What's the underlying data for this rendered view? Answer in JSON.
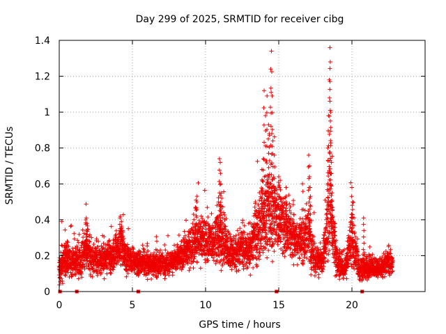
{
  "chart_data": {
    "type": "scatter",
    "title": "Day 299 of 2025, SRMTID for receiver cibg",
    "xlabel": "GPS time / hours",
    "ylabel": "SRMTID / TECUs",
    "xlim": [
      0,
      25
    ],
    "ylim": [
      0,
      1.4
    ],
    "x_ticks": [
      0,
      5,
      10,
      15,
      20
    ],
    "y_ticks": [
      0,
      0.2,
      0.4,
      0.6,
      0.8,
      1,
      1.2,
      1.4
    ],
    "x_tick_labels": [
      "0",
      "5",
      "10",
      "15",
      "20"
    ],
    "y_tick_labels": [
      "0",
      "0.2",
      "0.4",
      "0.6",
      "0.8",
      "1",
      "1.2",
      "1.4"
    ],
    "grid": true,
    "marker": "+",
    "color": "#ee0000",
    "series_description": "Dense 30-second SRMTID samples between 0 and 23 hours, mostly 0.05-0.3 TECU with enhancements near 4.2h, 9.5-11.5h and 13-19h",
    "series_envelope": [
      [
        0.0,
        0.13,
        0.06
      ],
      [
        0.3,
        0.16,
        0.07
      ],
      [
        0.6,
        0.18,
        0.08
      ],
      [
        1.0,
        0.17,
        0.06
      ],
      [
        1.5,
        0.18,
        0.07
      ],
      [
        1.9,
        0.26,
        0.1
      ],
      [
        2.3,
        0.17,
        0.06
      ],
      [
        3.0,
        0.18,
        0.06
      ],
      [
        3.6,
        0.19,
        0.06
      ],
      [
        4.2,
        0.28,
        0.09
      ],
      [
        4.6,
        0.18,
        0.06
      ],
      [
        5.5,
        0.16,
        0.05
      ],
      [
        6.5,
        0.15,
        0.05
      ],
      [
        7.5,
        0.16,
        0.05
      ],
      [
        8.5,
        0.2,
        0.06
      ],
      [
        9.0,
        0.26,
        0.09
      ],
      [
        9.5,
        0.3,
        0.11
      ],
      [
        10.0,
        0.28,
        0.09
      ],
      [
        10.5,
        0.27,
        0.08
      ],
      [
        11.0,
        0.33,
        0.14
      ],
      [
        11.5,
        0.23,
        0.08
      ],
      [
        12.0,
        0.22,
        0.07
      ],
      [
        12.5,
        0.24,
        0.08
      ],
      [
        13.0,
        0.22,
        0.07
      ],
      [
        13.6,
        0.35,
        0.14
      ],
      [
        14.2,
        0.45,
        0.18
      ],
      [
        14.7,
        0.42,
        0.15
      ],
      [
        15.2,
        0.4,
        0.14
      ],
      [
        15.7,
        0.33,
        0.1
      ],
      [
        16.3,
        0.28,
        0.08
      ],
      [
        17.0,
        0.32,
        0.12
      ],
      [
        17.5,
        0.18,
        0.07
      ],
      [
        18.0,
        0.17,
        0.06
      ],
      [
        18.5,
        0.45,
        0.2
      ],
      [
        19.0,
        0.16,
        0.06
      ],
      [
        19.5,
        0.12,
        0.04
      ],
      [
        20.0,
        0.3,
        0.12
      ],
      [
        20.5,
        0.12,
        0.05
      ],
      [
        21.0,
        0.14,
        0.05
      ],
      [
        21.5,
        0.13,
        0.04
      ],
      [
        22.0,
        0.14,
        0.04
      ],
      [
        22.5,
        0.16,
        0.05
      ],
      [
        22.8,
        0.15,
        0.04
      ]
    ],
    "peaks": [
      [
        0.45,
        0.27
      ],
      [
        0.55,
        0.28
      ],
      [
        1.85,
        0.41
      ],
      [
        1.9,
        0.38
      ],
      [
        4.15,
        0.41
      ],
      [
        4.25,
        0.39
      ],
      [
        9.35,
        0.51
      ],
      [
        9.4,
        0.5
      ],
      [
        10.95,
        0.74
      ],
      [
        11.0,
        0.72
      ],
      [
        11.05,
        0.6
      ],
      [
        11.1,
        0.52
      ],
      [
        13.85,
        0.68
      ],
      [
        13.95,
        0.74
      ],
      [
        14.0,
        1.12
      ],
      [
        14.1,
        0.98
      ],
      [
        14.2,
        1.09
      ],
      [
        14.3,
        0.93
      ],
      [
        14.35,
        0.88
      ],
      [
        14.45,
        1.24
      ],
      [
        14.5,
        1.34
      ],
      [
        14.55,
        1.09
      ],
      [
        14.6,
        0.84
      ],
      [
        14.7,
        0.76
      ],
      [
        15.0,
        0.64
      ],
      [
        15.1,
        0.62
      ],
      [
        15.5,
        0.58
      ],
      [
        17.05,
        0.76
      ],
      [
        17.1,
        0.7
      ],
      [
        17.15,
        0.58
      ],
      [
        18.35,
        0.8
      ],
      [
        18.4,
        0.98
      ],
      [
        18.45,
        1.18
      ],
      [
        18.5,
        1.36
      ],
      [
        18.52,
        1.28
      ],
      [
        18.55,
        1.0
      ],
      [
        18.6,
        0.72
      ],
      [
        18.65,
        0.55
      ],
      [
        20.0,
        0.58
      ],
      [
        20.05,
        0.5
      ],
      [
        20.8,
        0.41
      ]
    ],
    "gap_markers_x": [
      0.05,
      1.2,
      5.4,
      14.85,
      20.7
    ]
  }
}
